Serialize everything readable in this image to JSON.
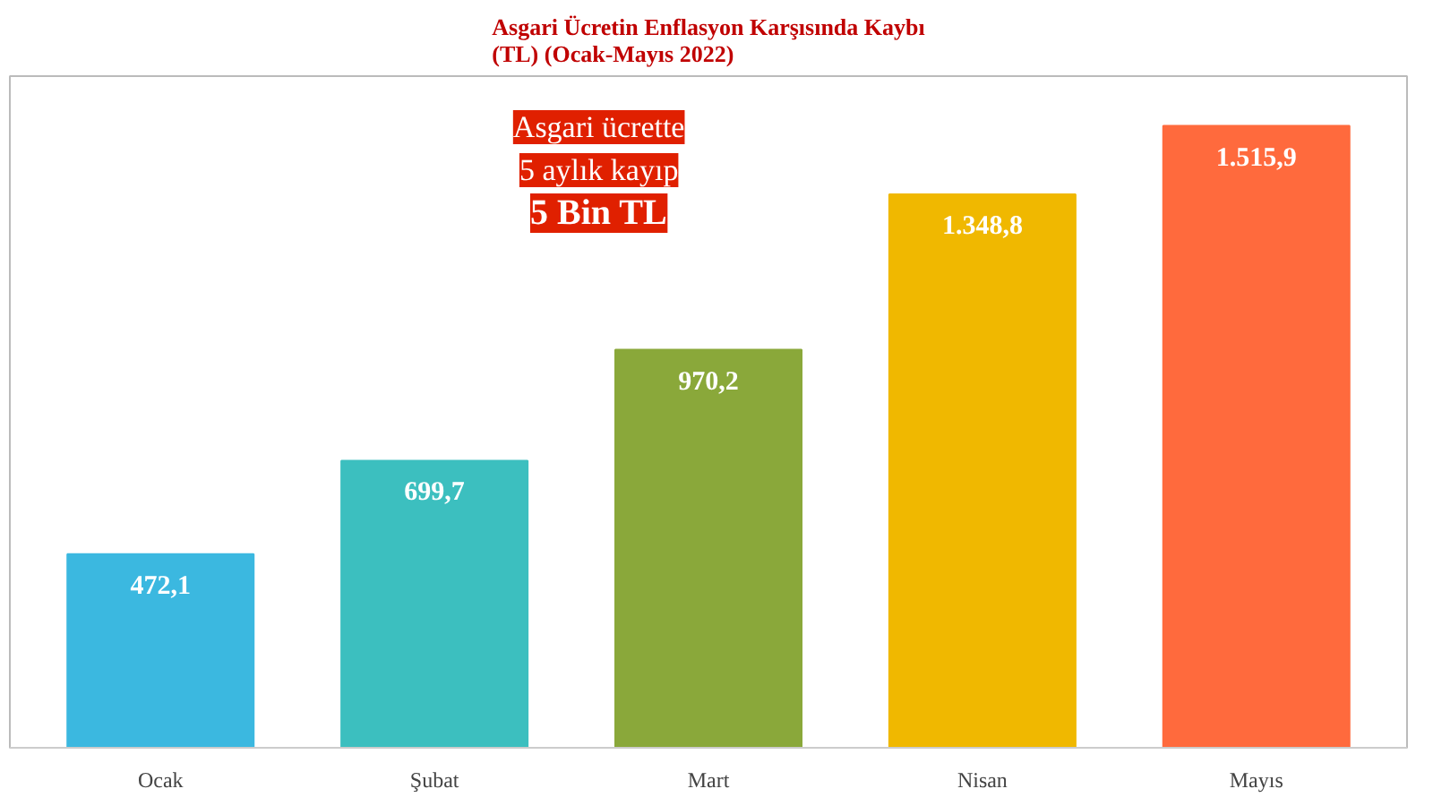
{
  "chart_data": {
    "type": "bar",
    "title": "Asgari Ücretin Enflasyon Karşısında Kaybı\n(TL) (Ocak-Mayıs 2022)",
    "categories": [
      "Ocak",
      "Şubat",
      "Mart",
      "Nisan",
      "Mayıs"
    ],
    "values": [
      472.1,
      699.7,
      970.2,
      1348.8,
      1515.9
    ],
    "colors": [
      "#3bb8e0",
      "#3cbfbf",
      "#8aa83a",
      "#f0b800",
      "#ff6a3d"
    ],
    "value_labels": [
      "472,1",
      "699,7",
      "970,2",
      "1.348,8",
      "1.515,9"
    ],
    "annotations": [
      "Asgari ücrette",
      "5 aylık kayıp",
      "5 Bin TL"
    ]
  }
}
